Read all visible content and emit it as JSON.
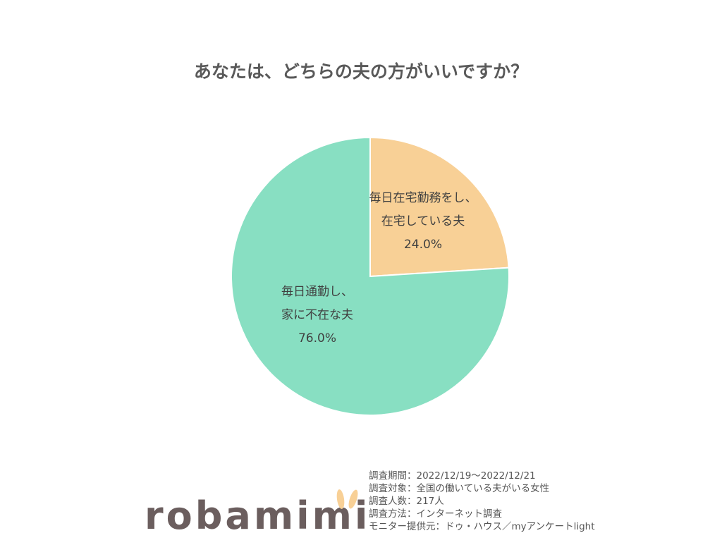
{
  "chart_data": {
    "type": "pie",
    "title": "あなたは、どちらの夫の方がいいですか？",
    "slices": [
      {
        "label_lines": [
          "毎日在宅勤務をし、",
          "在宅している夫"
        ],
        "value": 24.0,
        "value_label": "24.0%",
        "color": "#F8D096"
      },
      {
        "label_lines": [
          "毎日通勤し、",
          "家に不在な夫"
        ],
        "value": 76.0,
        "value_label": "76.0%",
        "color": "#88DFC2"
      }
    ],
    "start_angle": "12 o'clock",
    "direction": "clockwise"
  },
  "footer": {
    "logo": "robamimi",
    "lines": [
      "調査期間：2022/12/19～2022/12/21",
      "調査対象：全国の働いている夫がいる女性",
      "調査人数：217人",
      "調査方法：インターネット調査",
      "モニター提供元：ドゥ・ハウス／myアンケートlight"
    ]
  }
}
